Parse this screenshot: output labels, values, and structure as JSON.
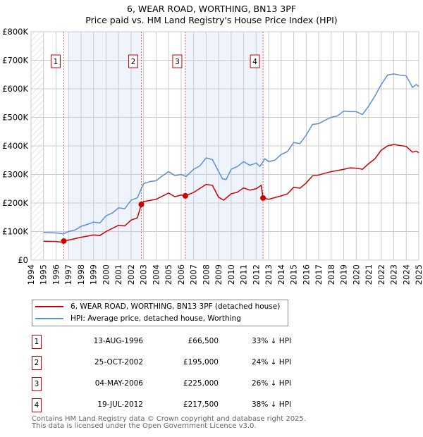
{
  "chart_data": {
    "type": "line",
    "title": "6, WEAR ROAD, WORTHING, BN13 3PF",
    "subtitle": "Price paid vs. HM Land Registry's House Price Index (HPI)",
    "xlim": [
      1994,
      2025
    ],
    "ylim": [
      0,
      800000
    ],
    "x_ticks": [
      "1994",
      "1995",
      "1996",
      "1997",
      "1998",
      "1999",
      "2000",
      "2001",
      "2002",
      "2003",
      "2004",
      "2005",
      "2006",
      "2007",
      "2008",
      "2009",
      "2010",
      "2011",
      "2012",
      "2013",
      "2014",
      "2015",
      "2016",
      "2017",
      "2018",
      "2019",
      "2020",
      "2021",
      "2022",
      "2023",
      "2024",
      "2025"
    ],
    "y_ticks": [
      {
        "v": 0,
        "label": "£0"
      },
      {
        "v": 100000,
        "label": "£100K"
      },
      {
        "v": 200000,
        "label": "£200K"
      },
      {
        "v": 300000,
        "label": "£300K"
      },
      {
        "v": 400000,
        "label": "£400K"
      },
      {
        "v": 500000,
        "label": "£500K"
      },
      {
        "v": 600000,
        "label": "£600K"
      },
      {
        "v": 700000,
        "label": "£700K"
      },
      {
        "v": 800000,
        "label": "£800K"
      }
    ],
    "grid": true,
    "shaded_ranges": [
      [
        1997.0,
        2002.82
      ],
      [
        2006.34,
        2012.55
      ]
    ],
    "series": [
      {
        "name": "6, WEAR ROAD, WORTHING, BN13 3PF (detached house)",
        "color": "#cc0000",
        "x": [
          1995,
          1996,
          1996.4,
          1996.62,
          1997,
          1998,
          1999,
          1999.5,
          2000,
          2001,
          2001.5,
          2002,
          2002.5,
          2002.82,
          2003,
          2004,
          2005,
          2005.5,
          2006,
          2006.34,
          2007,
          2008,
          2008.5,
          2009,
          2009.4,
          2010,
          2010.5,
          2011,
          2011.5,
          2012,
          2012.4,
          2012.55,
          2013,
          2014,
          2014.5,
          2015,
          2015.5,
          2016,
          2016.5,
          2017,
          2018,
          2019,
          2019.5,
          2020,
          2020.5,
          2021,
          2021.5,
          2022,
          2022.5,
          2023,
          2024,
          2024.5,
          2024.8,
          2025
        ],
        "y": [
          66000,
          65000,
          63000,
          66500,
          70000,
          80000,
          88000,
          86000,
          100000,
          122000,
          120000,
          140000,
          148000,
          195000,
          205000,
          213000,
          235000,
          222000,
          228000,
          225000,
          237000,
          265000,
          262000,
          220000,
          210000,
          232000,
          238000,
          253000,
          245000,
          250000,
          262000,
          217500,
          213000,
          225000,
          232000,
          255000,
          252000,
          270000,
          295000,
          298000,
          310000,
          318000,
          323000,
          322000,
          318000,
          338000,
          355000,
          385000,
          400000,
          405000,
          398000,
          378000,
          382000,
          376000
        ]
      },
      {
        "name": "HPI: Average price, detached house, Worthing",
        "color": "#5b8fd4",
        "x": [
          1995,
          1996,
          1996.6,
          1997,
          1997.5,
          1998,
          1998.5,
          1999,
          1999.5,
          2000,
          2000.5,
          2001,
          2001.5,
          2002,
          2002.5,
          2003,
          2003.5,
          2004,
          2004.5,
          2005,
          2005.5,
          2006,
          2006.4,
          2007,
          2007.5,
          2008,
          2008.5,
          2009,
          2009.3,
          2009.6,
          2010,
          2010.5,
          2011,
          2011.5,
          2012,
          2012.3,
          2012.7,
          2013,
          2013.5,
          2014,
          2014.5,
          2015,
          2015.5,
          2016,
          2016.5,
          2017,
          2017.5,
          2018,
          2018.5,
          2019,
          2019.5,
          2020,
          2020.5,
          2021,
          2021.5,
          2022,
          2022.5,
          2023,
          2023.5,
          2024,
          2024.5,
          2024.8,
          2025
        ],
        "y": [
          97000,
          95000,
          92000,
          100000,
          105000,
          118000,
          125000,
          133000,
          130000,
          155000,
          165000,
          183000,
          180000,
          210000,
          218000,
          268000,
          275000,
          278000,
          295000,
          310000,
          296000,
          300000,
          293000,
          318000,
          330000,
          358000,
          352000,
          310000,
          285000,
          282000,
          318000,
          328000,
          345000,
          332000,
          340000,
          328000,
          355000,
          345000,
          350000,
          370000,
          380000,
          412000,
          408000,
          438000,
          475000,
          478000,
          490000,
          500000,
          505000,
          522000,
          520000,
          520000,
          510000,
          540000,
          575000,
          615000,
          648000,
          652000,
          648000,
          645000,
          605000,
          615000,
          608000
        ]
      }
    ],
    "sales": [
      {
        "label": "1",
        "x": 1996.62,
        "y": 66500,
        "date": "13-AUG-1996",
        "price": "£66,500",
        "hpi": "33% ↓ HPI"
      },
      {
        "label": "2",
        "x": 2002.82,
        "y": 195000,
        "date": "25-OCT-2002",
        "price": "£195,000",
        "hpi": "24% ↓ HPI"
      },
      {
        "label": "3",
        "x": 2006.34,
        "y": 225000,
        "date": "04-MAY-2006",
        "price": "£225,000",
        "hpi": "26% ↓ HPI"
      },
      {
        "label": "4",
        "x": 2012.55,
        "y": 217500,
        "date": "19-JUL-2012",
        "price": "£217,500",
        "hpi": "38% ↓ HPI"
      }
    ],
    "legend_placement": "below"
  },
  "footer": {
    "line1": "Contains HM Land Registry data © Crown copyright and database right 2025.",
    "line2": "This data is licensed under the Open Government Licence v3.0."
  }
}
